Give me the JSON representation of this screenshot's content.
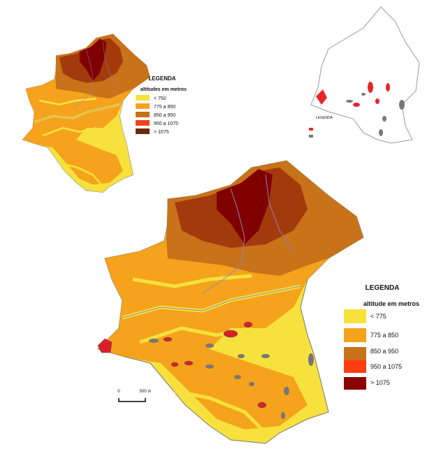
{
  "maps": [
    {
      "legend": {
        "title": "LEGENDA",
        "subtitle": "altitudes em metros",
        "items": [
          "< 750",
          "775 a 850",
          "850 a 950",
          "950 a 1075",
          "> 1075"
        ]
      }
    },
    {
      "legend": {
        "title": "LEGENDA"
      }
    },
    {
      "legend": {
        "title": "LEGENDA",
        "subtitle": "altitude em metros",
        "items": [
          "< 775",
          "775 a 850",
          "850 a 950",
          "950 a 1075",
          "> 1075"
        ]
      },
      "scale": {
        "labels": [
          "0",
          "500 m"
        ]
      }
    }
  ]
}
